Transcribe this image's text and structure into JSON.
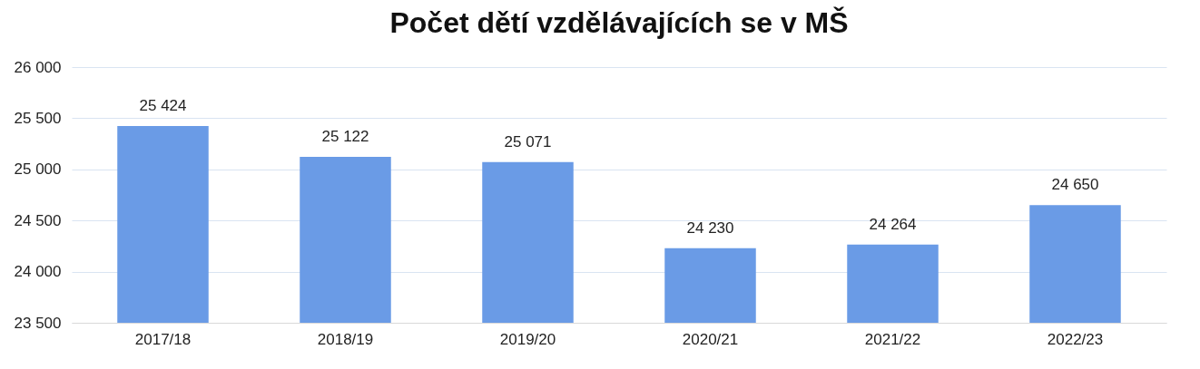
{
  "chart_data": {
    "type": "bar",
    "title": "Počet dětí vzdělávajících se v MŠ",
    "categories": [
      "2017/18",
      "2018/19",
      "2019/20",
      "2020/21",
      "2021/22",
      "2022/23"
    ],
    "values": [
      25424,
      25122,
      25071,
      24230,
      24264,
      24650
    ],
    "value_labels": [
      "25 424",
      "25 122",
      "25 071",
      "24 230",
      "24 264",
      "24 650"
    ],
    "color": "#6a9be6",
    "ylim": [
      23500,
      26000
    ],
    "yticks": [
      {
        "value": 23500,
        "label": "23 500"
      },
      {
        "value": 24000,
        "label": "24 000"
      },
      {
        "value": 24500,
        "label": "24 500"
      },
      {
        "value": 25000,
        "label": "25 000"
      },
      {
        "value": 25500,
        "label": "25 500"
      },
      {
        "value": 26000,
        "label": "26 000"
      }
    ],
    "grid": "y"
  }
}
